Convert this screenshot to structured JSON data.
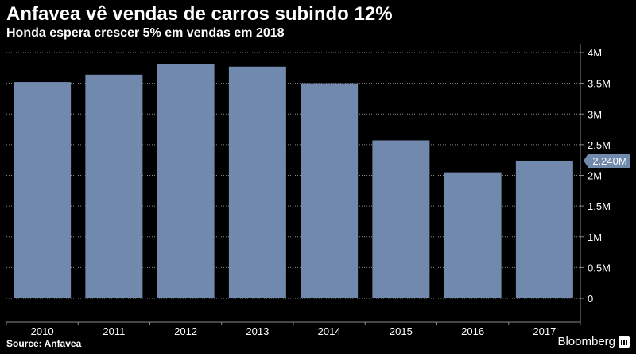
{
  "header": {
    "title": "Anfavea vê vendas de carros subindo 12%",
    "subtitle": "Honda espera crescer 5% em vendas em 2018"
  },
  "footer": {
    "source": "Source: Anfavea",
    "brand": "Bloomberg"
  },
  "colors": {
    "background": "#000000",
    "bar": "#7189ac",
    "grid": "#8a8a8a",
    "text": "#ffffff"
  },
  "chart_data": {
    "type": "bar",
    "title": "Anfavea vê vendas de carros subindo 12%",
    "subtitle": "Honda espera crescer 5% em vendas em 2018",
    "categories": [
      "2010",
      "2011",
      "2012",
      "2013",
      "2014",
      "2015",
      "2016",
      "2017"
    ],
    "values": [
      3.52,
      3.64,
      3.81,
      3.77,
      3.5,
      2.57,
      2.05,
      2.24
    ],
    "unit": "M",
    "ylim": [
      0,
      4
    ],
    "yticks": [
      {
        "value": 4,
        "label": "4M"
      },
      {
        "value": 3.5,
        "label": "3.5M"
      },
      {
        "value": 3,
        "label": "3M"
      },
      {
        "value": 2.5,
        "label": "2.5M"
      },
      {
        "value": 2,
        "label": "2M"
      },
      {
        "value": 1.5,
        "label": "1.5M"
      },
      {
        "value": 1,
        "label": "1M"
      },
      {
        "value": 0.5,
        "label": "0.5M"
      },
      {
        "value": 0,
        "label": "0"
      }
    ],
    "y_axis_side": "right",
    "grid": true,
    "last_value_label": "2.240M"
  }
}
